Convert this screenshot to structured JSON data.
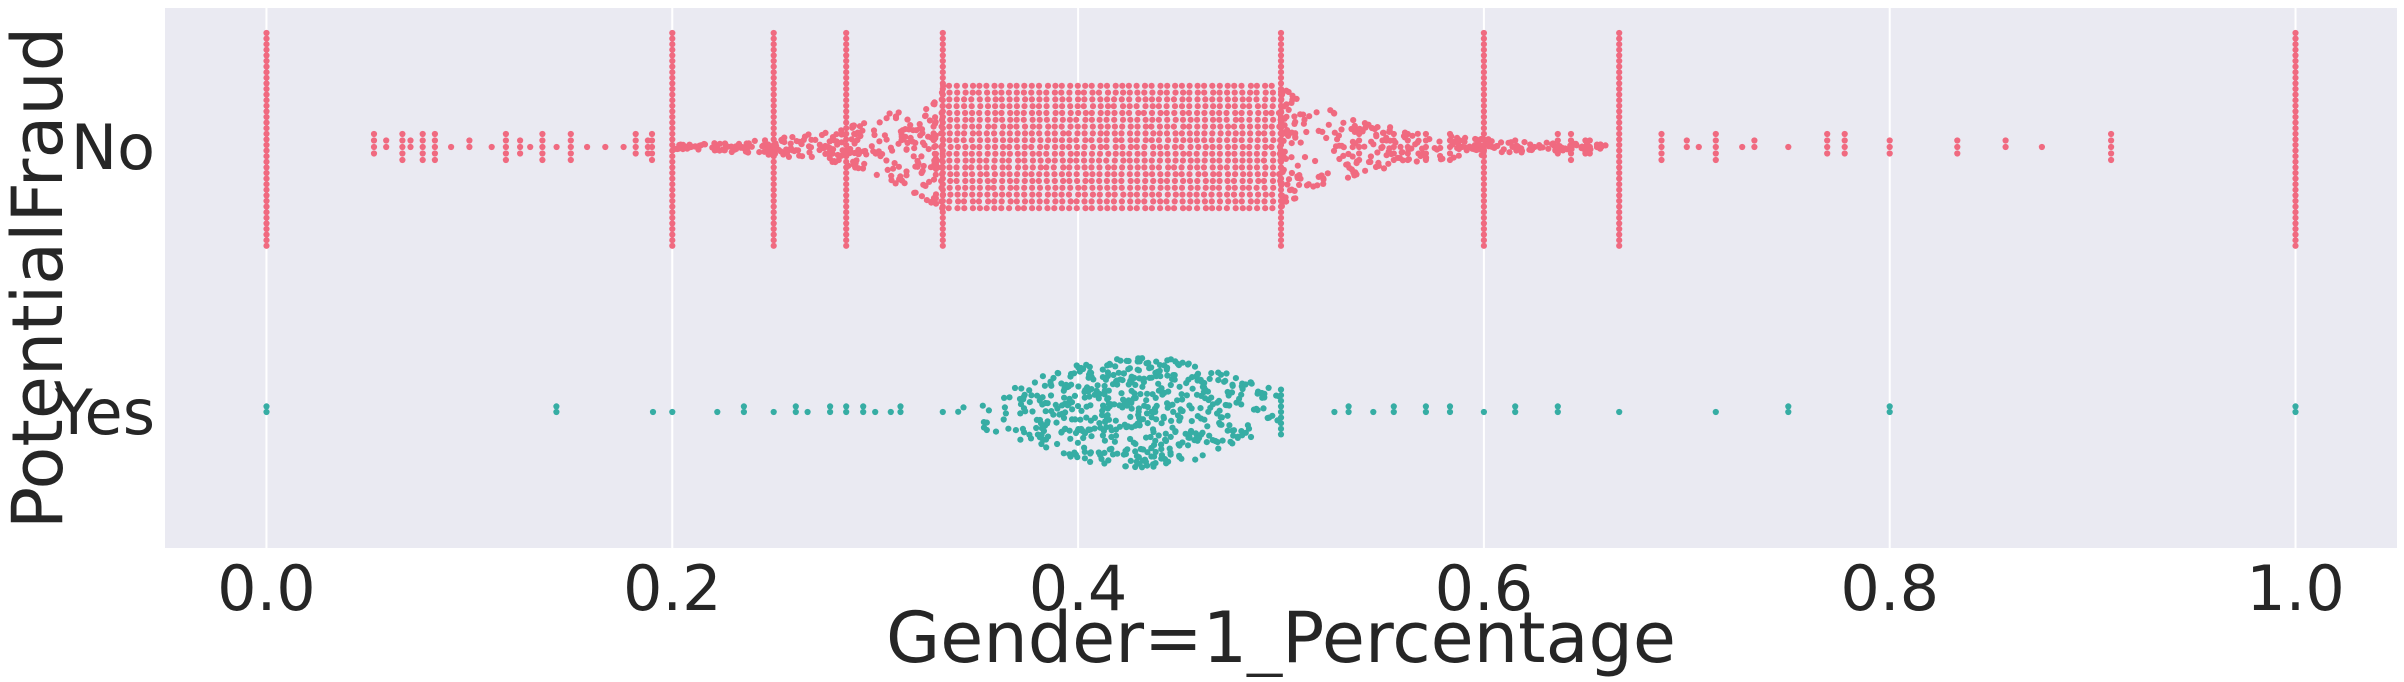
{
  "chart_data": {
    "type": "scatter",
    "subtype": "swarm",
    "xlabel": "Gender=1_Percentage",
    "ylabel": "PotentialFraud",
    "xlim": [
      -0.05,
      1.05
    ],
    "xticks": [
      "0.0",
      "0.2",
      "0.4",
      "0.6",
      "0.8",
      "1.0"
    ],
    "xtick_values": [
      0.0,
      0.2,
      0.4,
      0.6,
      0.8,
      1.0
    ],
    "categories": [
      "No",
      "Yes"
    ],
    "grid": true,
    "background": "#eaeaf2",
    "grid_color": "#ffffff",
    "series": [
      {
        "category": "No",
        "color": "#f06a80",
        "vertical_stacks": [
          0.0,
          0.2,
          0.25,
          0.2857,
          0.3333,
          0.5,
          0.6,
          0.6667,
          1.0
        ],
        "sparse_values": [
          0.053,
          0.059,
          0.067,
          0.071,
          0.077,
          0.083,
          0.091,
          0.1,
          0.111,
          0.118,
          0.125,
          0.13,
          0.136,
          0.143,
          0.15,
          0.158,
          0.167,
          0.176,
          0.182,
          0.188,
          0.19,
          0.5385,
          0.55,
          0.5556,
          0.5625,
          0.5714,
          0.5833,
          0.5882,
          0.6154,
          0.625,
          0.6364,
          0.6429,
          0.65,
          0.6522,
          0.6875,
          0.7,
          0.7059,
          0.7143,
          0.7273,
          0.7333,
          0.75,
          0.7692,
          0.7778,
          0.8,
          0.8333,
          0.8571,
          0.875,
          0.9091
        ],
        "peak_center": 0.42
      },
      {
        "category": "Yes",
        "color": "#36ada4",
        "values": [
          0.0,
          0.1429,
          0.1905,
          0.2,
          0.2222,
          0.2353,
          0.25,
          0.2609,
          0.2667,
          0.2778,
          0.2857,
          0.2941,
          0.3,
          0.3077,
          0.3125,
          0.3333,
          0.5,
          0.5263,
          0.5333,
          0.5455,
          0.5556,
          0.5714,
          0.5833,
          0.6,
          0.6154,
          0.6364,
          0.6667,
          0.7143,
          0.75,
          0.8,
          1.0
        ],
        "peak_center": 0.43
      }
    ]
  }
}
